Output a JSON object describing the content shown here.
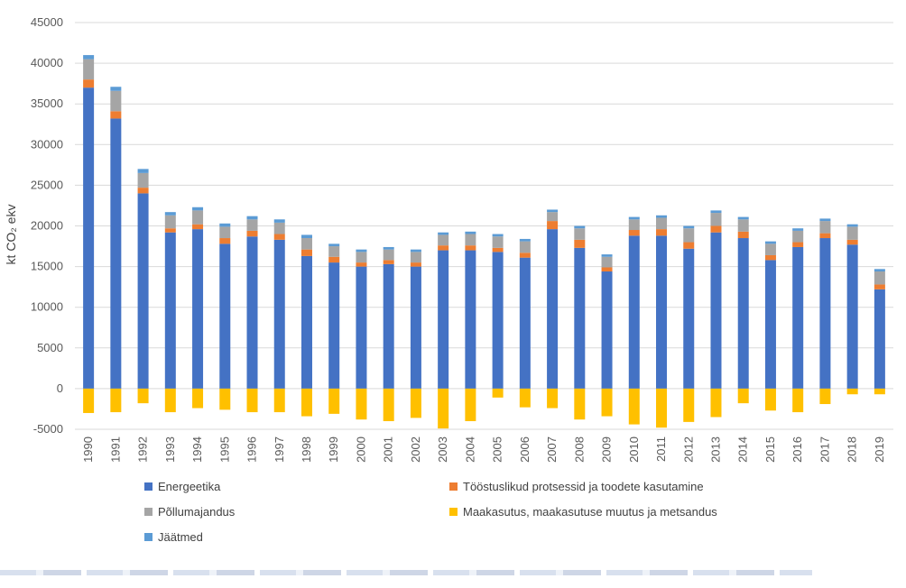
{
  "chart_data": {
    "type": "bar",
    "stacked": true,
    "ylabel": "kt CO₂ ekv",
    "ylim": [
      -5000,
      45000
    ],
    "yticks": [
      -5000,
      0,
      5000,
      10000,
      15000,
      20000,
      25000,
      30000,
      35000,
      40000,
      45000
    ],
    "grid": true,
    "legend_position": "bottom",
    "categories": [
      "1990",
      "1991",
      "1992",
      "1993",
      "1994",
      "1995",
      "1996",
      "1997",
      "1998",
      "1999",
      "2000",
      "2001",
      "2002",
      "2003",
      "2004",
      "2005",
      "2006",
      "2007",
      "2008",
      "2009",
      "2010",
      "2011",
      "2012",
      "2013",
      "2014",
      "2015",
      "2016",
      "2017",
      "2018",
      "2019"
    ],
    "series": [
      {
        "name": "Energeetika",
        "color": "#4472C4",
        "values": [
          37000,
          33200,
          24000,
          19200,
          19600,
          17800,
          18700,
          18300,
          16300,
          15500,
          15000,
          15300,
          15000,
          17000,
          17000,
          16800,
          16100,
          19600,
          17300,
          14400,
          18800,
          18800,
          17200,
          19200,
          18500,
          15800,
          17400,
          18500,
          17700,
          12200
        ]
      },
      {
        "name": "Tööstuslikud protsessid ja toodete kasutamine",
        "color": "#ED7D31",
        "values": [
          1000,
          900,
          700,
          500,
          600,
          700,
          700,
          700,
          800,
          700,
          500,
          500,
          500,
          600,
          600,
          500,
          600,
          1000,
          1000,
          500,
          700,
          800,
          800,
          800,
          800,
          600,
          600,
          600,
          600,
          600
        ]
      },
      {
        "name": "Põllumajandus",
        "color": "#A5A5A5",
        "values": [
          2500,
          2500,
          1800,
          1600,
          1700,
          1400,
          1400,
          1400,
          1400,
          1300,
          1300,
          1300,
          1300,
          1300,
          1400,
          1400,
          1400,
          1100,
          1400,
          1300,
          1300,
          1400,
          1700,
          1600,
          1500,
          1400,
          1400,
          1500,
          1600,
          1600
        ]
      },
      {
        "name": "Maakasutus, maakasutuse muutus ja metsandus",
        "color": "#FFC000",
        "values": [
          -3000,
          -2900,
          -1800,
          -2900,
          -2400,
          -2600,
          -2900,
          -2900,
          -3400,
          -3100,
          -3800,
          -4000,
          -3600,
          -4900,
          -4000,
          -1100,
          -2300,
          -2400,
          -3800,
          -3400,
          -4400,
          -4800,
          -4100,
          -3500,
          -1800,
          -2700,
          -2900,
          -1900,
          -700,
          -700
        ]
      },
      {
        "name": "Jäätmed",
        "color": "#5B9BD5",
        "values": [
          500,
          500,
          500,
          400,
          400,
          400,
          400,
          400,
          400,
          300,
          300,
          300,
          300,
          300,
          300,
          300,
          300,
          300,
          300,
          300,
          300,
          300,
          300,
          300,
          300,
          300,
          300,
          300,
          300,
          300
        ]
      }
    ]
  }
}
